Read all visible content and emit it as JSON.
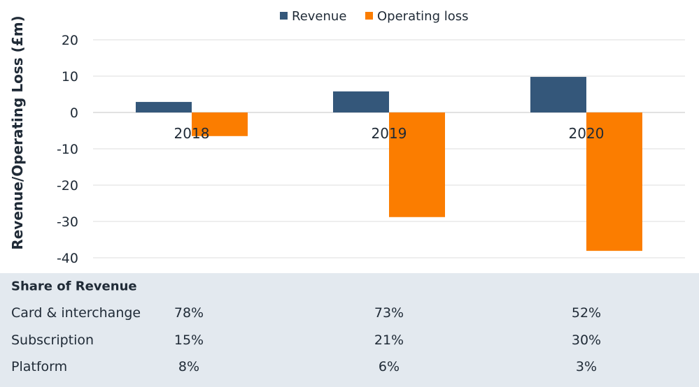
{
  "chart_data": {
    "type": "bar",
    "categories": [
      "2018",
      "2019",
      "2020"
    ],
    "series": [
      {
        "name": "Revenue",
        "values": [
          2.9,
          5.8,
          9.8
        ],
        "color": "#34577a"
      },
      {
        "name": "Operating loss",
        "values": [
          -6.5,
          -28.8,
          -38.1
        ],
        "color": "#fb7d00"
      }
    ],
    "ylabel": "Revenue/Operating Loss (£m)",
    "ylim": [
      -40,
      20
    ],
    "yticks": [
      20,
      10,
      0,
      -10,
      -20,
      -30,
      -40
    ],
    "grid": true,
    "legend": "top-center"
  },
  "table": {
    "title": "Share of Revenue",
    "rows": [
      {
        "label": "Card & interchange",
        "values": [
          "78%",
          "73%",
          "52%"
        ]
      },
      {
        "label": "Subscription",
        "values": [
          "15%",
          "21%",
          "30%"
        ]
      },
      {
        "label": "Platform",
        "values": [
          "8%",
          "6%",
          "3%"
        ]
      }
    ]
  }
}
